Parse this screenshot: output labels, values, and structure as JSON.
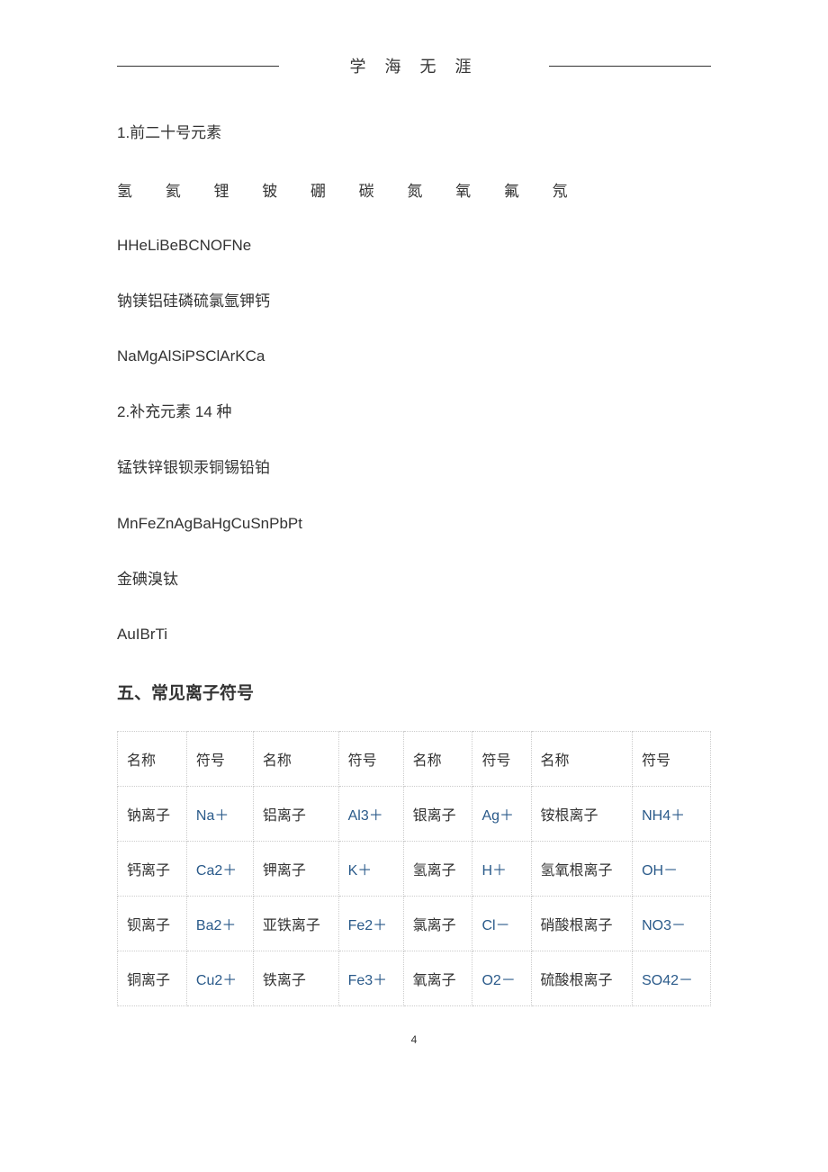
{
  "header": {
    "title": "学  海  无  涯"
  },
  "content": {
    "line1": "1.前二十号元素",
    "elements_row1": [
      "氢",
      "氦",
      "锂",
      "铍",
      "硼",
      "碳",
      "氮",
      "氧",
      "氟",
      "氖"
    ],
    "line2": "HHeLiBeBCNOFNe",
    "line3": "钠镁铝硅磷硫氯氩钾钙",
    "line4": "NaMgAlSiPSClArKCa",
    "line5": "2.补充元素 14 种",
    "line6": "锰铁锌银钡汞铜锡铅铂",
    "line7": "MnFeZnAgBaHgCuSnPbPt",
    "line8": "金碘溴钛",
    "line9": "AuIBrTi",
    "section_title": "五、常见离子符号"
  },
  "table": {
    "headers": [
      "名称",
      "符号",
      "名称",
      "符号",
      "名称",
      "符号",
      "名称",
      "符号"
    ],
    "rows": [
      [
        "钠离子",
        "Na＋",
        "铝离子",
        "Al3＋",
        "银离子",
        "Ag＋",
        "铵根离子",
        "NH4＋"
      ],
      [
        "钙离子",
        "Ca2＋",
        "钾离子",
        "K＋",
        "氢离子",
        "H＋",
        "氢氧根离子",
        "OH－"
      ],
      [
        "钡离子",
        "Ba2＋",
        "亚铁离子",
        "Fe2＋",
        "氯离子",
        "Cl－",
        "硝酸根离子",
        "NO3－"
      ],
      [
        "铜离子",
        "Cu2＋",
        "铁离子",
        "Fe3＋",
        "氧离子",
        "O2－",
        "硫酸根离子",
        "SO42－"
      ]
    ]
  },
  "page_number": "4",
  "colors": {
    "text": "#333333",
    "symbol": "#2a5a8a",
    "border": "#cccccc",
    "background": "#ffffff"
  }
}
